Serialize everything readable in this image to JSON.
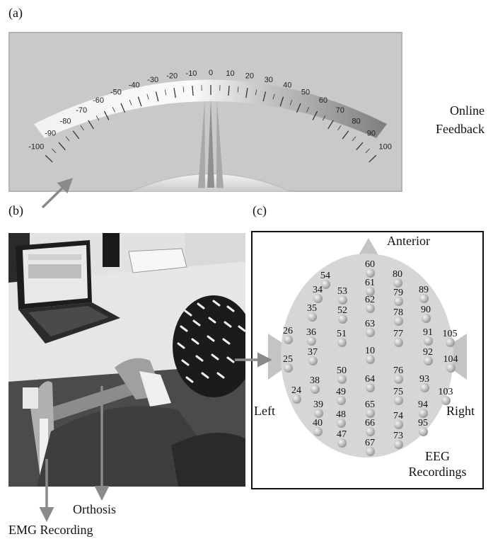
{
  "panels": {
    "a": "(a)",
    "b": "(b)",
    "c": "(c)"
  },
  "meter": {
    "scale_labels": [
      "-100",
      "-90",
      "-80",
      "-70",
      "-60",
      "-50",
      "-40",
      "-30",
      "-20",
      "-10",
      "0",
      "10",
      "20",
      "30",
      "40",
      "50",
      "60",
      "70",
      "80",
      "90",
      "100"
    ],
    "needle_values": [
      -10,
      0,
      10
    ],
    "colors": {
      "panel": "#c9c9c9",
      "arc_light": "#f6f6f6",
      "arc_dark": "#8a8a8a"
    }
  },
  "labels": {
    "online_feedback_line1": "Online",
    "online_feedback_line2": "Feedback",
    "orthosis": "Orthosis",
    "emg_recording": "EMG Recording"
  },
  "head": {
    "anterior": "Anterior",
    "left": "Left",
    "right": "Right",
    "eeg_line1": "EEG",
    "eeg_line2": "Recordings",
    "electrodes": [
      "60",
      "54",
      "80",
      "61",
      "34",
      "53",
      "79",
      "89",
      "62",
      "35",
      "52",
      "78",
      "90",
      "63",
      "26",
      "36",
      "51",
      "77",
      "91",
      "105",
      "10",
      "37",
      "92",
      "25",
      "104",
      "50",
      "76",
      "64",
      "38",
      "93",
      "24",
      "49",
      "75",
      "103",
      "65",
      "39",
      "94",
      "48",
      "74",
      "66",
      "40",
      "95",
      "47",
      "73",
      "67"
    ]
  }
}
